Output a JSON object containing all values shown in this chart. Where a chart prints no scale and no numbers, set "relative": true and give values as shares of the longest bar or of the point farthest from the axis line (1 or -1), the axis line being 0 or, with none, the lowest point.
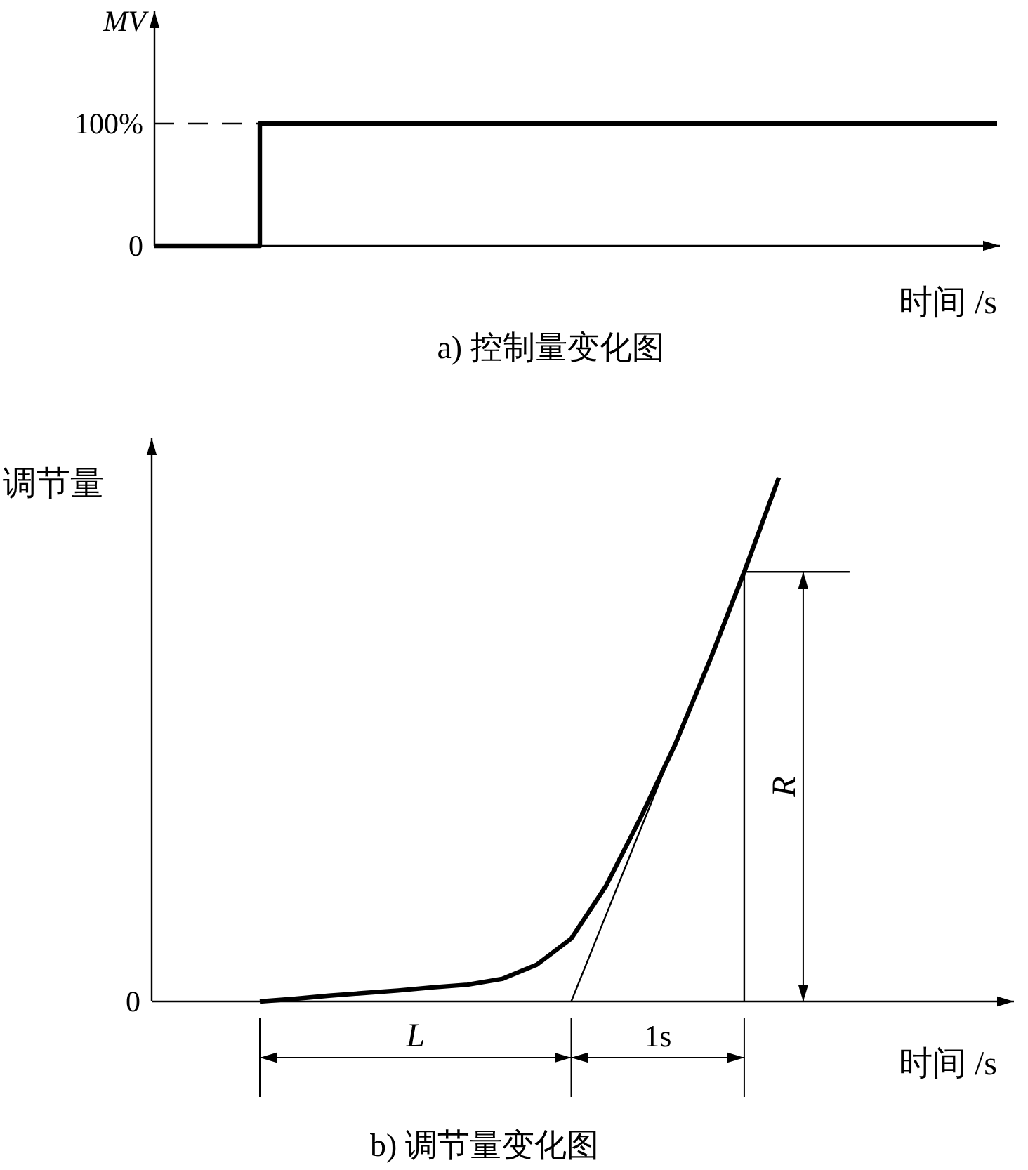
{
  "chart_data": [
    {
      "type": "step",
      "title": "a) 控制量变化图",
      "ylabel": "MV",
      "xlabel": "时间 /s",
      "categories": [
        null,
        null,
        null,
        null,
        null,
        null,
        null,
        null,
        null
      ],
      "series": [
        {
          "color": "#000000",
          "values": [
            0,
            100,
            100,
            100,
            100,
            100,
            100,
            100,
            100
          ]
        }
      ],
      "ylim": [
        0,
        192
      ],
      "yticks": [
        0,
        {
          "value": 100,
          "label": "100%"
        }
      ],
      "tick_labels": "y",
      "ref_lines": [
        {
          "axis": "y",
          "value": 100,
          "line_style": "dashed"
        }
      ]
    },
    {
      "type": "line",
      "title": "b) 调节量变化图",
      "ylabel": "调节量",
      "xlabel": "时间 /s",
      "relative": true,
      "categories": [
        null,
        null,
        null,
        null,
        null,
        null,
        null,
        null,
        null,
        null,
        null,
        null,
        null,
        null,
        null,
        null
      ],
      "series": [
        {
          "color": "#000000",
          "values": [
            0,
            0.005,
            0.011,
            0.016,
            0.021,
            0.027,
            0.032,
            0.043,
            0.07,
            0.12,
            0.22,
            0.35,
            0.49,
            0.65,
            0.82,
            1.0
          ]
        },
        {
          "type": "line",
          "color": "#000000",
          "values": [
            null,
            null,
            null,
            null,
            null,
            null,
            null,
            null,
            null,
            0,
            0.164,
            0.328,
            0.492,
            0.656,
            0.82,
            null
          ]
        }
      ],
      "tick_labels": false,
      "ref_lines": [
        {
          "axis": "y",
          "value": 0.82,
          "line_style": "solid"
        }
      ],
      "annotations": [
        "L",
        "1s",
        "R",
        "0"
      ]
    }
  ]
}
